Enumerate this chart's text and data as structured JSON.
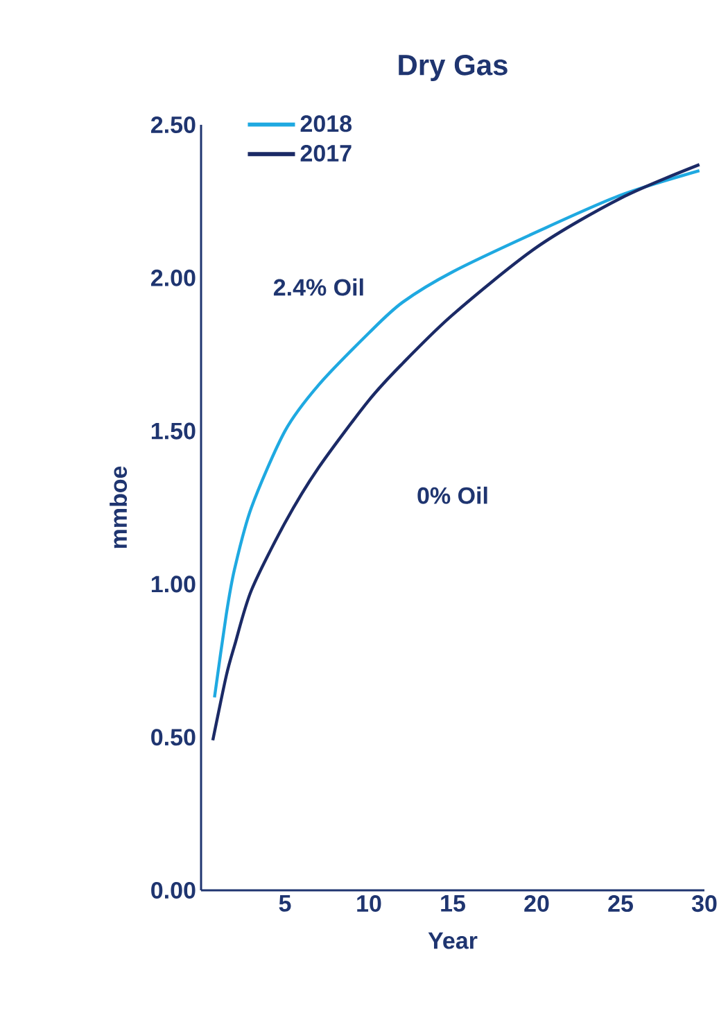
{
  "chart_data": {
    "type": "line",
    "title": "Dry Gas",
    "xlabel": "Year",
    "ylabel": "mmboe",
    "xlim": [
      0,
      30
    ],
    "xticks": [
      5,
      10,
      15,
      20,
      25,
      30
    ],
    "ylim": [
      0,
      2.5
    ],
    "yticks": [
      {
        "value": 0,
        "label": "0.00"
      },
      {
        "value": 0.5,
        "label": "0.50"
      },
      {
        "value": 1,
        "label": "1.00"
      },
      {
        "value": 1.5,
        "label": "1.50"
      },
      {
        "value": 2,
        "label": "2.00"
      },
      {
        "value": 2.5,
        "label": "2.50"
      }
    ],
    "legend": "top left",
    "grid": false,
    "annotations": [
      "2.4% Oil",
      "0% Oil"
    ],
    "series": [
      {
        "name": "2018",
        "color": "#1fa9e1",
        "x": [
          0.8,
          1.5,
          2,
          3,
          5,
          7,
          10,
          12,
          15,
          20,
          25,
          29.7
        ],
        "values": [
          0.63,
          0.9,
          1.05,
          1.25,
          1.5,
          1.65,
          1.82,
          1.92,
          2.02,
          2.15,
          2.27,
          2.35
        ]
      },
      {
        "name": "2017",
        "color": "#1b2a66",
        "x": [
          0.7,
          1.5,
          2,
          3,
          5,
          7,
          10,
          12,
          15,
          20,
          25,
          29.7
        ],
        "values": [
          0.49,
          0.7,
          0.8,
          0.98,
          1.2,
          1.38,
          1.6,
          1.72,
          1.88,
          2.1,
          2.26,
          2.37
        ]
      }
    ]
  }
}
